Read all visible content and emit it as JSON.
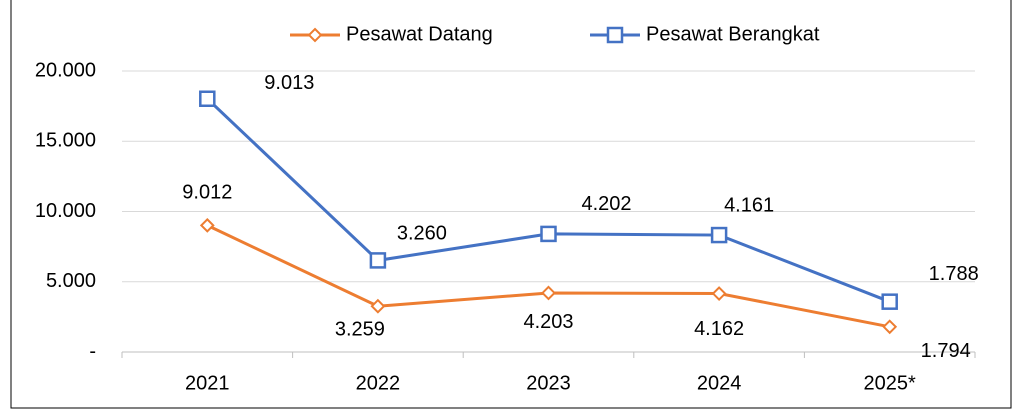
{
  "chart_data": {
    "type": "line",
    "stacked": true,
    "categories": [
      "2021",
      "2022",
      "2023",
      "2024",
      "2025*"
    ],
    "series": [
      {
        "name": "Pesawat Datang",
        "color": "#ed7d31",
        "marker": "diamond",
        "values": [
          9012,
          3259,
          4203,
          4162,
          1794
        ],
        "value_labels": [
          "9.012",
          "3.259",
          "4.203",
          "4.162",
          "1.794"
        ]
      },
      {
        "name": "Pesawat Berangkat",
        "color": "#4472c4",
        "marker": "square",
        "values": [
          9013,
          3260,
          4202,
          4161,
          1788
        ],
        "value_labels": [
          "9.013",
          "3.260",
          "4.202",
          "4.161",
          "1.788"
        ]
      }
    ],
    "ylim": [
      0,
      20000
    ],
    "yticks": [
      {
        "value": 0,
        "label": "-"
      },
      {
        "value": 5000,
        "label": "5.000"
      },
      {
        "value": 10000,
        "label": "10.000"
      },
      {
        "value": 15000,
        "label": "15.000"
      },
      {
        "value": 20000,
        "label": "20.000"
      }
    ],
    "grid": true,
    "legend": "top"
  }
}
